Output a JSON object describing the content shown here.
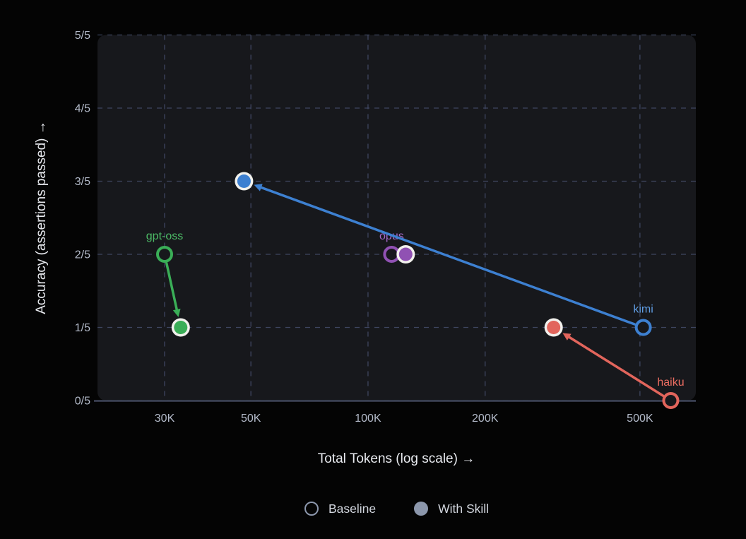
{
  "theme": {
    "page_bg": "#040404",
    "panel_bg": "#17181c",
    "grid_color": "#454d6b",
    "axis_line_color": "#3e4558",
    "tick_label_color": "#b3bac9",
    "axis_title_color": "#e8eaef",
    "legend_text_color": "#d2d6de",
    "marker_ring_color": "#f2f1ed",
    "legend_swatch_color": "#8c97ac"
  },
  "chart_data": {
    "type": "scatter",
    "title": "",
    "xlabel": "Total Tokens (log scale) →",
    "ylabel": "Accuracy (assertions passed) →",
    "x_scale": "log",
    "x_domain": [
      20000,
      700000
    ],
    "y_domain": [
      0,
      5
    ],
    "grid": true,
    "x_ticks": [
      {
        "value": 30000,
        "label": "30K"
      },
      {
        "value": 50000,
        "label": "50K"
      },
      {
        "value": 100000,
        "label": "100K"
      },
      {
        "value": 200000,
        "label": "200K"
      },
      {
        "value": 500000,
        "label": "500K"
      }
    ],
    "y_ticks": [
      {
        "value": 0,
        "label": "0/5"
      },
      {
        "value": 1,
        "label": "1/5"
      },
      {
        "value": 2,
        "label": "2/5"
      },
      {
        "value": 3,
        "label": "3/5"
      },
      {
        "value": 4,
        "label": "4/5"
      },
      {
        "value": 5,
        "label": "5/5"
      }
    ],
    "series": [
      {
        "name": "gpt-oss",
        "color": "#3aae57",
        "label_color": "#4cba66",
        "baseline": {
          "tokens": 30000,
          "score": 2
        },
        "with_skill": {
          "tokens": 33000,
          "score": 1
        }
      },
      {
        "name": "opus",
        "color": "#9051b3",
        "label_color": "#a768c9",
        "baseline": {
          "tokens": 115000,
          "score": 2
        },
        "with_skill": {
          "tokens": 125000,
          "score": 2
        }
      },
      {
        "name": "kimi",
        "color": "#3d80d1",
        "label_color": "#5f9ce2",
        "baseline": {
          "tokens": 510000,
          "score": 1
        },
        "with_skill": {
          "tokens": 48000,
          "score": 3
        }
      },
      {
        "name": "haiku",
        "color": "#e2655c",
        "label_color": "#ee6e62",
        "baseline": {
          "tokens": 600000,
          "score": 0
        },
        "with_skill": {
          "tokens": 300000,
          "score": 1
        }
      }
    ],
    "legend": {
      "items": [
        {
          "label": "Baseline",
          "style": "open"
        },
        {
          "label": "With Skill",
          "style": "filled"
        }
      ]
    }
  }
}
